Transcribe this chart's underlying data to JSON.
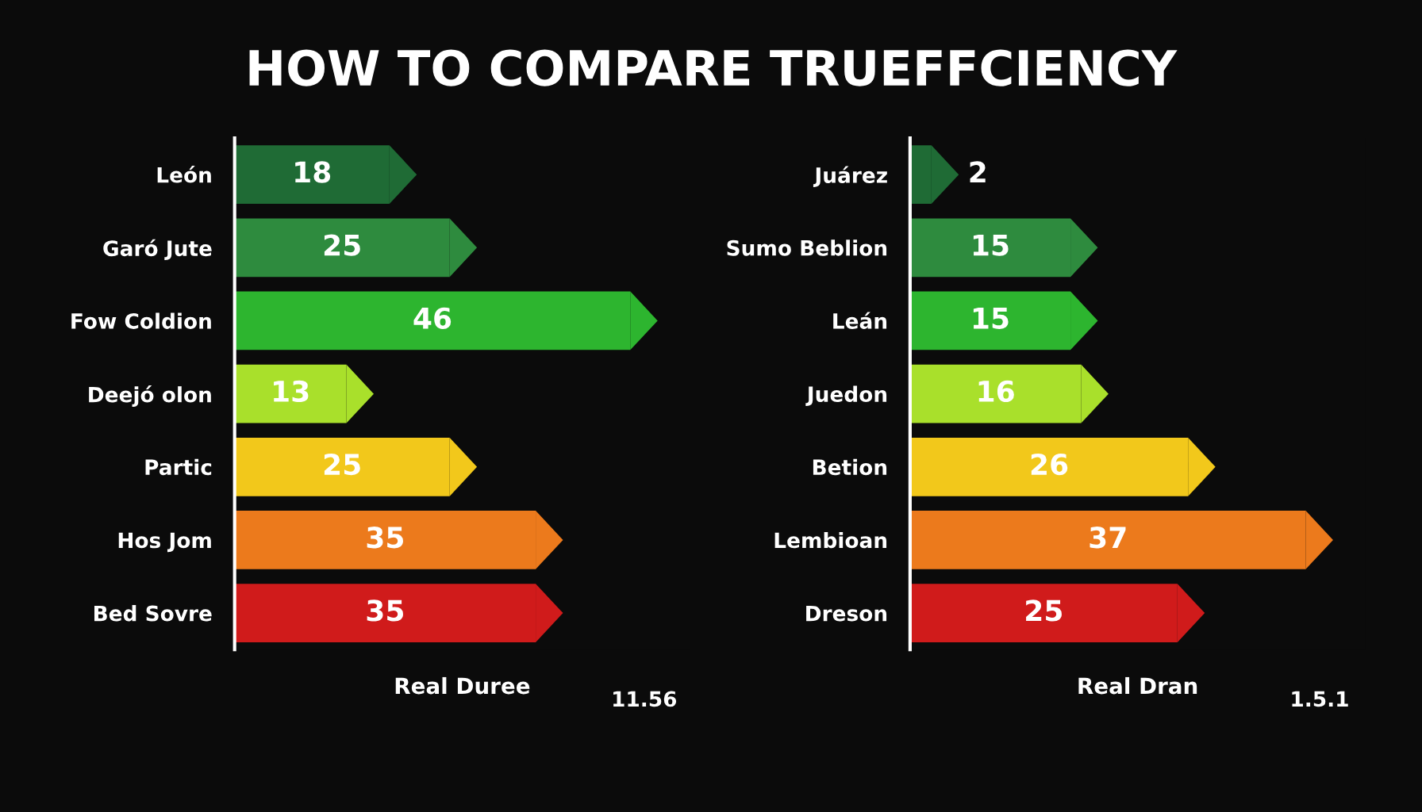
{
  "chart_data": [
    {
      "type": "bar",
      "orientation": "horizontal",
      "title": "HOW TO COMPARE TRUEFFCIENCY",
      "xlabel": "Real Duree",
      "annotations": [
        "11.56"
      ],
      "categories": [
        "León",
        "Garó Jute",
        "Fow Coldion",
        "Deejó olon",
        "Partic",
        "Hos Jom",
        "Bed Sovre"
      ],
      "values": [
        18,
        25,
        46,
        13,
        25,
        35,
        35
      ],
      "data_labels": true,
      "colors": [
        "#1f6b35",
        "#2e8b3e",
        "#2db52f",
        "#a9e02b",
        "#f2c81b",
        "#ec7a1c",
        "#d01b1b"
      ]
    },
    {
      "type": "bar",
      "orientation": "horizontal",
      "xlabel": "Real Dran",
      "annotations": [
        "1.5.1"
      ],
      "categories": [
        "Juárez",
        "Sumo Beblion",
        "Leán",
        "Juedon",
        "Betion",
        "Lembioan",
        "Dreson"
      ],
      "values": [
        2,
        15,
        15,
        16,
        26,
        37,
        25
      ],
      "data_labels": true,
      "colors": [
        "#1f6b35",
        "#2e8b3e",
        "#2db52f",
        "#a9e02b",
        "#f2c81b",
        "#ec7a1c",
        "#d01b1b"
      ]
    }
  ]
}
